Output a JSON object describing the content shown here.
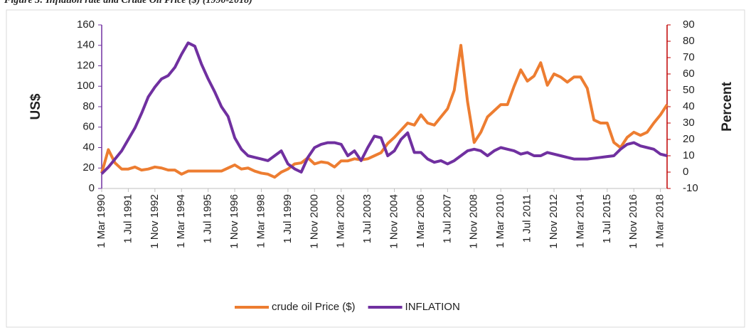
{
  "caption": "Figure 3: Inflation rate and Crude Oil Price ($) (1990-2018)",
  "chart_data": {
    "type": "line",
    "categories": [
      "1 Mar 1990",
      null,
      null,
      null,
      "1 Jul 1991",
      null,
      null,
      null,
      "1 Nov 1992",
      null,
      null,
      null,
      "1 Mar 1994",
      null,
      null,
      null,
      "1 Jul 1995",
      null,
      null,
      null,
      "1 Nov 1996",
      null,
      null,
      null,
      "1 Mar 1998",
      null,
      null,
      null,
      "1 Jul 1999",
      null,
      null,
      null,
      "1 Nov 2000",
      null,
      null,
      null,
      "1 Mar 2002",
      null,
      null,
      null,
      "1 Jul 2003",
      null,
      null,
      null,
      "1 Nov 2004",
      null,
      null,
      null,
      "1 Mar 2006",
      null,
      null,
      null,
      "1 Jul 2007",
      null,
      null,
      null,
      "1 Nov 2008",
      null,
      null,
      null,
      "1 Mar 2010",
      null,
      null,
      null,
      "1 Jul 2011",
      null,
      null,
      null,
      "1 Nov 2012",
      null,
      null,
      null,
      "1 Mar 2014",
      null,
      null,
      null,
      "1 Jul 2015",
      null,
      null,
      null,
      "1 Nov 2016",
      null,
      null,
      null,
      "1 Mar 2018",
      null
    ],
    "ylabel": "US$",
    "y2label": "Percent",
    "ylim": [
      0,
      160
    ],
    "yticks": [
      0,
      20,
      40,
      60,
      80,
      100,
      120,
      140,
      160
    ],
    "y2lim": [
      -10,
      90
    ],
    "y2ticks": [
      -10,
      0,
      10,
      20,
      30,
      40,
      50,
      60,
      70,
      80,
      90
    ],
    "legend": "bottom",
    "series": [
      {
        "name": "crude oil Price ($)",
        "color": "#ed7d31",
        "values": [
          15,
          38,
          25,
          19,
          19,
          21,
          18,
          19,
          21,
          20,
          18,
          18,
          14,
          17,
          17,
          17,
          17,
          17,
          17,
          20,
          23,
          19,
          20,
          17,
          15,
          14,
          11,
          16,
          19,
          24,
          25,
          30,
          24,
          26,
          25,
          21,
          27,
          27,
          29,
          28,
          29,
          32,
          35,
          44,
          50,
          57,
          64,
          62,
          72,
          64,
          62,
          70,
          78,
          96,
          140,
          85,
          45,
          55,
          70,
          76,
          82,
          82,
          100,
          116,
          105,
          110,
          123,
          101,
          112,
          109,
          104,
          109,
          109,
          98,
          67,
          64,
          64,
          45,
          40,
          50,
          55,
          52,
          55,
          64,
          72,
          82
        ]
      },
      {
        "name": "INFLATION",
        "color": "#7030a0",
        "axis": "y2",
        "values": [
          -1,
          3,
          8,
          13,
          20,
          27,
          36,
          46,
          52,
          57,
          59,
          64,
          72,
          79,
          77,
          66,
          57,
          49,
          40,
          34,
          21,
          14,
          10,
          9,
          8,
          7,
          10,
          13,
          5,
          2,
          0,
          9,
          15,
          17,
          18,
          18,
          17,
          10,
          13,
          7,
          15,
          22,
          21,
          10,
          13,
          20,
          24,
          12,
          12,
          8,
          6,
          7,
          5,
          7,
          10,
          13,
          14,
          13,
          10,
          13,
          15,
          14,
          13,
          11,
          12,
          10,
          10,
          12,
          11,
          10,
          9,
          8,
          8,
          8,
          8.5,
          9,
          9.5,
          10,
          14,
          17,
          18,
          16,
          15,
          14,
          11,
          10
        ]
      }
    ]
  }
}
